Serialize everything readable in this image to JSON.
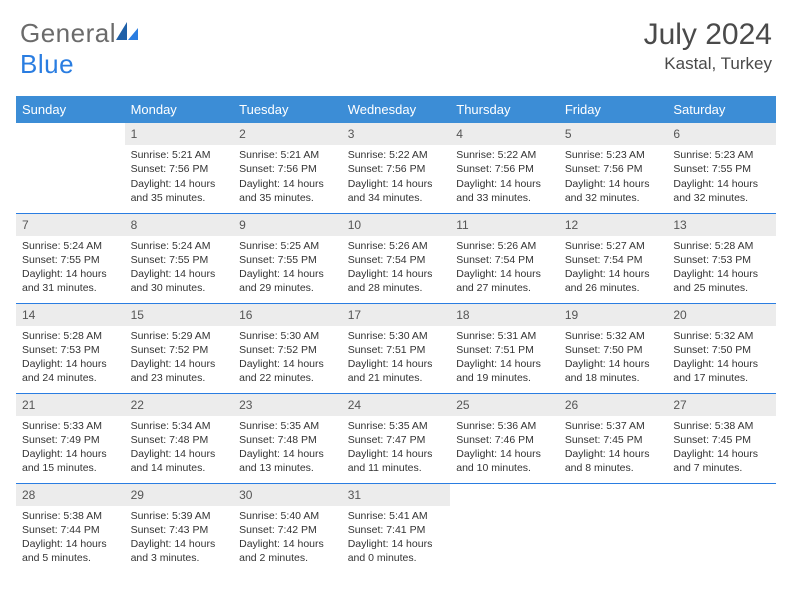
{
  "brand": {
    "part1": "General",
    "part2": "Blue"
  },
  "title": "July 2024",
  "location": "Kastal, Turkey",
  "colors": {
    "header_bg": "#3c8dd6",
    "accent": "#2a7de1",
    "daynum_bg": "#ececec",
    "text": "#333333",
    "title_text": "#4a4a4a"
  },
  "weekdays": [
    "Sunday",
    "Monday",
    "Tuesday",
    "Wednesday",
    "Thursday",
    "Friday",
    "Saturday"
  ],
  "weeks": [
    [
      {
        "day": "",
        "sunrise": "",
        "sunset": "",
        "daylight1": "",
        "daylight2": ""
      },
      {
        "day": "1",
        "sunrise": "Sunrise: 5:21 AM",
        "sunset": "Sunset: 7:56 PM",
        "daylight1": "Daylight: 14 hours",
        "daylight2": "and 35 minutes."
      },
      {
        "day": "2",
        "sunrise": "Sunrise: 5:21 AM",
        "sunset": "Sunset: 7:56 PM",
        "daylight1": "Daylight: 14 hours",
        "daylight2": "and 35 minutes."
      },
      {
        "day": "3",
        "sunrise": "Sunrise: 5:22 AM",
        "sunset": "Sunset: 7:56 PM",
        "daylight1": "Daylight: 14 hours",
        "daylight2": "and 34 minutes."
      },
      {
        "day": "4",
        "sunrise": "Sunrise: 5:22 AM",
        "sunset": "Sunset: 7:56 PM",
        "daylight1": "Daylight: 14 hours",
        "daylight2": "and 33 minutes."
      },
      {
        "day": "5",
        "sunrise": "Sunrise: 5:23 AM",
        "sunset": "Sunset: 7:56 PM",
        "daylight1": "Daylight: 14 hours",
        "daylight2": "and 32 minutes."
      },
      {
        "day": "6",
        "sunrise": "Sunrise: 5:23 AM",
        "sunset": "Sunset: 7:55 PM",
        "daylight1": "Daylight: 14 hours",
        "daylight2": "and 32 minutes."
      }
    ],
    [
      {
        "day": "7",
        "sunrise": "Sunrise: 5:24 AM",
        "sunset": "Sunset: 7:55 PM",
        "daylight1": "Daylight: 14 hours",
        "daylight2": "and 31 minutes."
      },
      {
        "day": "8",
        "sunrise": "Sunrise: 5:24 AM",
        "sunset": "Sunset: 7:55 PM",
        "daylight1": "Daylight: 14 hours",
        "daylight2": "and 30 minutes."
      },
      {
        "day": "9",
        "sunrise": "Sunrise: 5:25 AM",
        "sunset": "Sunset: 7:55 PM",
        "daylight1": "Daylight: 14 hours",
        "daylight2": "and 29 minutes."
      },
      {
        "day": "10",
        "sunrise": "Sunrise: 5:26 AM",
        "sunset": "Sunset: 7:54 PM",
        "daylight1": "Daylight: 14 hours",
        "daylight2": "and 28 minutes."
      },
      {
        "day": "11",
        "sunrise": "Sunrise: 5:26 AM",
        "sunset": "Sunset: 7:54 PM",
        "daylight1": "Daylight: 14 hours",
        "daylight2": "and 27 minutes."
      },
      {
        "day": "12",
        "sunrise": "Sunrise: 5:27 AM",
        "sunset": "Sunset: 7:54 PM",
        "daylight1": "Daylight: 14 hours",
        "daylight2": "and 26 minutes."
      },
      {
        "day": "13",
        "sunrise": "Sunrise: 5:28 AM",
        "sunset": "Sunset: 7:53 PM",
        "daylight1": "Daylight: 14 hours",
        "daylight2": "and 25 minutes."
      }
    ],
    [
      {
        "day": "14",
        "sunrise": "Sunrise: 5:28 AM",
        "sunset": "Sunset: 7:53 PM",
        "daylight1": "Daylight: 14 hours",
        "daylight2": "and 24 minutes."
      },
      {
        "day": "15",
        "sunrise": "Sunrise: 5:29 AM",
        "sunset": "Sunset: 7:52 PM",
        "daylight1": "Daylight: 14 hours",
        "daylight2": "and 23 minutes."
      },
      {
        "day": "16",
        "sunrise": "Sunrise: 5:30 AM",
        "sunset": "Sunset: 7:52 PM",
        "daylight1": "Daylight: 14 hours",
        "daylight2": "and 22 minutes."
      },
      {
        "day": "17",
        "sunrise": "Sunrise: 5:30 AM",
        "sunset": "Sunset: 7:51 PM",
        "daylight1": "Daylight: 14 hours",
        "daylight2": "and 21 minutes."
      },
      {
        "day": "18",
        "sunrise": "Sunrise: 5:31 AM",
        "sunset": "Sunset: 7:51 PM",
        "daylight1": "Daylight: 14 hours",
        "daylight2": "and 19 minutes."
      },
      {
        "day": "19",
        "sunrise": "Sunrise: 5:32 AM",
        "sunset": "Sunset: 7:50 PM",
        "daylight1": "Daylight: 14 hours",
        "daylight2": "and 18 minutes."
      },
      {
        "day": "20",
        "sunrise": "Sunrise: 5:32 AM",
        "sunset": "Sunset: 7:50 PM",
        "daylight1": "Daylight: 14 hours",
        "daylight2": "and 17 minutes."
      }
    ],
    [
      {
        "day": "21",
        "sunrise": "Sunrise: 5:33 AM",
        "sunset": "Sunset: 7:49 PM",
        "daylight1": "Daylight: 14 hours",
        "daylight2": "and 15 minutes."
      },
      {
        "day": "22",
        "sunrise": "Sunrise: 5:34 AM",
        "sunset": "Sunset: 7:48 PM",
        "daylight1": "Daylight: 14 hours",
        "daylight2": "and 14 minutes."
      },
      {
        "day": "23",
        "sunrise": "Sunrise: 5:35 AM",
        "sunset": "Sunset: 7:48 PM",
        "daylight1": "Daylight: 14 hours",
        "daylight2": "and 13 minutes."
      },
      {
        "day": "24",
        "sunrise": "Sunrise: 5:35 AM",
        "sunset": "Sunset: 7:47 PM",
        "daylight1": "Daylight: 14 hours",
        "daylight2": "and 11 minutes."
      },
      {
        "day": "25",
        "sunrise": "Sunrise: 5:36 AM",
        "sunset": "Sunset: 7:46 PM",
        "daylight1": "Daylight: 14 hours",
        "daylight2": "and 10 minutes."
      },
      {
        "day": "26",
        "sunrise": "Sunrise: 5:37 AM",
        "sunset": "Sunset: 7:45 PM",
        "daylight1": "Daylight: 14 hours",
        "daylight2": "and 8 minutes."
      },
      {
        "day": "27",
        "sunrise": "Sunrise: 5:38 AM",
        "sunset": "Sunset: 7:45 PM",
        "daylight1": "Daylight: 14 hours",
        "daylight2": "and 7 minutes."
      }
    ],
    [
      {
        "day": "28",
        "sunrise": "Sunrise: 5:38 AM",
        "sunset": "Sunset: 7:44 PM",
        "daylight1": "Daylight: 14 hours",
        "daylight2": "and 5 minutes."
      },
      {
        "day": "29",
        "sunrise": "Sunrise: 5:39 AM",
        "sunset": "Sunset: 7:43 PM",
        "daylight1": "Daylight: 14 hours",
        "daylight2": "and 3 minutes."
      },
      {
        "day": "30",
        "sunrise": "Sunrise: 5:40 AM",
        "sunset": "Sunset: 7:42 PM",
        "daylight1": "Daylight: 14 hours",
        "daylight2": "and 2 minutes."
      },
      {
        "day": "31",
        "sunrise": "Sunrise: 5:41 AM",
        "sunset": "Sunset: 7:41 PM",
        "daylight1": "Daylight: 14 hours",
        "daylight2": "and 0 minutes."
      },
      {
        "day": "",
        "sunrise": "",
        "sunset": "",
        "daylight1": "",
        "daylight2": ""
      },
      {
        "day": "",
        "sunrise": "",
        "sunset": "",
        "daylight1": "",
        "daylight2": ""
      },
      {
        "day": "",
        "sunrise": "",
        "sunset": "",
        "daylight1": "",
        "daylight2": ""
      }
    ]
  ]
}
